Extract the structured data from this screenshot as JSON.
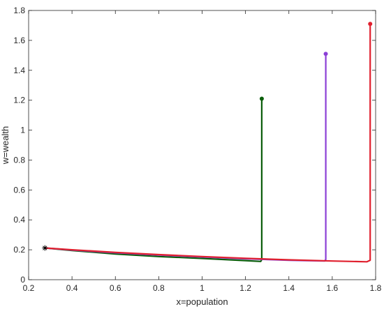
{
  "chart_data": {
    "type": "line",
    "title": "",
    "xlabel": "x=population",
    "ylabel": "w=wealth",
    "xlim": [
      0.2,
      1.8
    ],
    "ylim": [
      0,
      1.8
    ],
    "xticks": [
      "0.2",
      "0.4",
      "0.6",
      "0.8",
      "1",
      "1.2",
      "1.4",
      "1.6",
      "1.8"
    ],
    "yticks": [
      "0",
      "0.2",
      "0.4",
      "0.6",
      "0.8",
      "1",
      "1.2",
      "1.4",
      "1.6",
      "1.8"
    ],
    "grid": false,
    "legend": "none",
    "start_point": {
      "x": 0.275,
      "y": 0.212,
      "marker": "asterisk",
      "color": "#000000"
    },
    "series": [
      {
        "color": "#0b5e0b",
        "x": [
          0.275,
          0.4,
          0.6,
          0.8,
          1.0,
          1.2,
          1.27,
          1.275,
          1.275
        ],
        "y": [
          0.212,
          0.195,
          0.172,
          0.155,
          0.142,
          0.128,
          0.122,
          0.135,
          1.21
        ],
        "end_marker": {
          "x": 1.275,
          "y": 1.21
        }
      },
      {
        "color": "#8b3fd6",
        "x": [
          0.275,
          0.4,
          0.6,
          0.8,
          1.0,
          1.2,
          1.4,
          1.565,
          1.57,
          1.57
        ],
        "y": [
          0.212,
          0.198,
          0.18,
          0.165,
          0.152,
          0.14,
          0.13,
          0.125,
          0.135,
          1.51
        ],
        "end_marker": {
          "x": 1.57,
          "y": 1.51
        }
      },
      {
        "color": "#e0202e",
        "x": [
          0.275,
          0.4,
          0.6,
          0.8,
          1.0,
          1.2,
          1.4,
          1.6,
          1.76,
          1.775,
          1.775
        ],
        "y": [
          0.212,
          0.2,
          0.183,
          0.168,
          0.155,
          0.143,
          0.133,
          0.125,
          0.12,
          0.13,
          1.71
        ],
        "end_marker": {
          "x": 1.775,
          "y": 1.71
        }
      }
    ]
  }
}
